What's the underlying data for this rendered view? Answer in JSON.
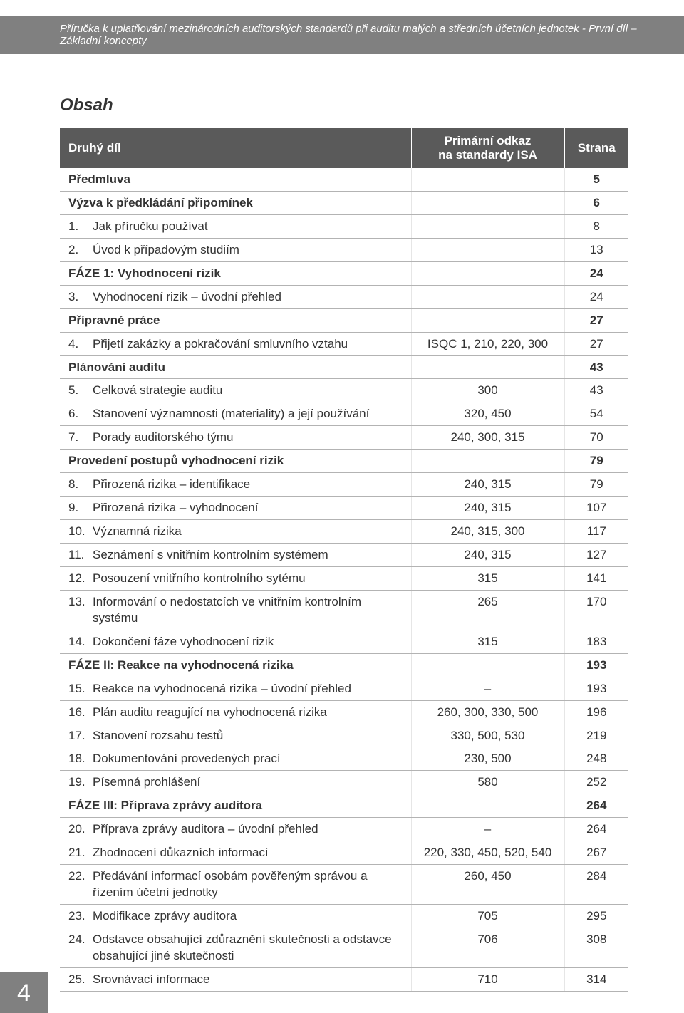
{
  "header": "Příručka k uplatňování mezinárodních auditorských standardů při auditu malých a středních účetních jednotek - První díl – Základní koncepty",
  "section_title": "Obsah",
  "columns": {
    "c1": "Druhý díl",
    "c2_line1": "Primární odkaz",
    "c2_line2": "na standardy ISA",
    "c3": "Strana"
  },
  "rows": [
    {
      "num": "",
      "label": "Předmluva",
      "ref": "",
      "page": "5",
      "bold": true,
      "span": true
    },
    {
      "num": "",
      "label": "Výzva k předkládání připomínek",
      "ref": "",
      "page": "6",
      "bold": true,
      "span": true
    },
    {
      "num": "1.",
      "label": "Jak příručku používat",
      "ref": "",
      "page": "8",
      "bold": false
    },
    {
      "num": "2.",
      "label": "Úvod k případovým studiím",
      "ref": "",
      "page": "13",
      "bold": false
    },
    {
      "num": "",
      "label": "FÁZE 1: Vyhodnocení rizik",
      "ref": "",
      "page": "24",
      "bold": true,
      "span": true
    },
    {
      "num": "3.",
      "label": "Vyhodnocení rizik – úvodní přehled",
      "ref": "",
      "page": "24",
      "bold": false
    },
    {
      "num": "",
      "label": "Přípravné práce",
      "ref": "",
      "page": "27",
      "bold": true,
      "span": true
    },
    {
      "num": "4.",
      "label": "Přijetí zakázky a pokračování smluvního vztahu",
      "ref": "ISQC 1, 210, 220, 300",
      "page": "27",
      "bold": false
    },
    {
      "num": "",
      "label": "Plánování auditu",
      "ref": "",
      "page": "43",
      "bold": true,
      "span": true
    },
    {
      "num": "5.",
      "label": "Celková strategie auditu",
      "ref": "300",
      "page": "43",
      "bold": false
    },
    {
      "num": "6.",
      "label": "Stanovení významnosti (materiality) a její používání",
      "ref": "320, 450",
      "page": "54",
      "bold": false
    },
    {
      "num": "7.",
      "label": "Porady auditorského týmu",
      "ref": "240, 300, 315",
      "page": "70",
      "bold": false
    },
    {
      "num": "",
      "label": "Provedení postupů vyhodnocení rizik",
      "ref": "",
      "page": "79",
      "bold": true,
      "span": true
    },
    {
      "num": "8.",
      "label": "Přirozená rizika – identifikace",
      "ref": "240, 315",
      "page": "79",
      "bold": false
    },
    {
      "num": "9.",
      "label": "Přirozená rizika – vyhodnocení",
      "ref": "240, 315",
      "page": "107",
      "bold": false
    },
    {
      "num": "10.",
      "label": "Významná rizika",
      "ref": "240, 315, 300",
      "page": "117",
      "bold": false
    },
    {
      "num": "11.",
      "label": "Seznámení s vnitřním kontrolním systémem",
      "ref": "240, 315",
      "page": "127",
      "bold": false
    },
    {
      "num": "12.",
      "label": "Posouzení vnitřního kontrolního sytému",
      "ref": "315",
      "page": "141",
      "bold": false
    },
    {
      "num": "13.",
      "label": "Informování o nedostatcích ve vnitřním kontrolním systému",
      "ref": "265",
      "page": "170",
      "bold": false
    },
    {
      "num": "14.",
      "label": "Dokončení fáze vyhodnocení rizik",
      "ref": "315",
      "page": "183",
      "bold": false
    },
    {
      "num": "",
      "label": "FÁZE II: Reakce na vyhodnocená rizika",
      "ref": "",
      "page": "193",
      "bold": true,
      "span": true
    },
    {
      "num": "15.",
      "label": "Reakce na vyhodnocená rizika – úvodní přehled",
      "ref": "–",
      "page": "193",
      "bold": false
    },
    {
      "num": "16.",
      "label": "Plán auditu reagující na vyhodnocená rizika",
      "ref": "260, 300, 330, 500",
      "page": "196",
      "bold": false
    },
    {
      "num": "17.",
      "label": "Stanovení rozsahu testů",
      "ref": "330, 500, 530",
      "page": "219",
      "bold": false
    },
    {
      "num": "18.",
      "label": "Dokumentování provedených prací",
      "ref": "230, 500",
      "page": "248",
      "bold": false
    },
    {
      "num": "19.",
      "label": "Písemná prohlášení",
      "ref": "580",
      "page": "252",
      "bold": false
    },
    {
      "num": "",
      "label": "FÁZE III: Příprava zprávy auditora",
      "ref": "",
      "page": "264",
      "bold": true,
      "span": true
    },
    {
      "num": "20.",
      "label": "Příprava zprávy auditora – úvodní přehled",
      "ref": "–",
      "page": "264",
      "bold": false
    },
    {
      "num": "21.",
      "label": "Zhodnocení důkazních informací",
      "ref": "220, 330, 450, 520, 540",
      "page": "267",
      "bold": false
    },
    {
      "num": "22.",
      "label": "Předávání informací osobám pověřeným správou a řízením účetní jednotky",
      "ref": "260, 450",
      "page": "284",
      "bold": false
    },
    {
      "num": "23.",
      "label": "Modifikace zprávy auditora",
      "ref": "705",
      "page": "295",
      "bold": false
    },
    {
      "num": "24.",
      "label": "Odstavce obsahující zdůraznění skutečnosti a odstavce obsahující jiné skutečnosti",
      "ref": "706",
      "page": "308",
      "bold": false
    },
    {
      "num": "25.",
      "label": "Srovnávací informace",
      "ref": "710",
      "page": "314",
      "bold": false
    }
  ],
  "page_number": "4",
  "colors": {
    "header_bg": "#808080",
    "thead_bg": "#5a5a5a",
    "text": "#333333",
    "border": "#b3b3b3"
  },
  "typography": {
    "header_fontsize": 15,
    "title_fontsize": 24,
    "body_fontsize": 17,
    "pagenum_fontsize": 34
  }
}
